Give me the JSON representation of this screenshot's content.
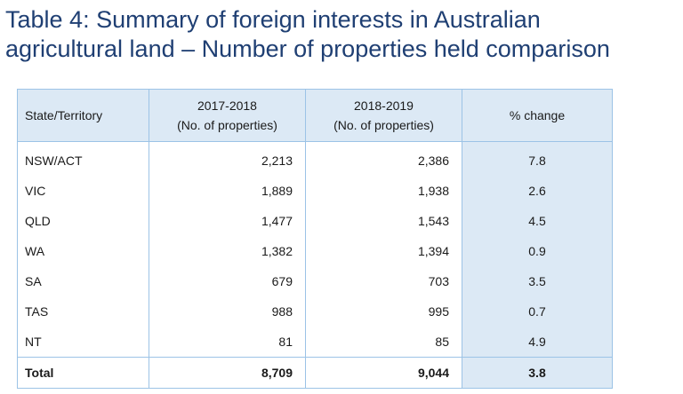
{
  "title": {
    "line1": "Table 4: Summary of foreign interests in Australian",
    "line2": "agricultural land – Number of properties held comparison"
  },
  "table": {
    "headers": {
      "state": "State/Territory",
      "year1_line1": "2017-2018",
      "year1_line2": "(No. of properties)",
      "year2_line1": "2018-2019",
      "year2_line2": "(No. of properties)",
      "change": "% change"
    },
    "rows": [
      {
        "state": "NSW/ACT",
        "y2017_2018": "2,213",
        "y2018_2019": "2,386",
        "change": "7.8"
      },
      {
        "state": "VIC",
        "y2017_2018": "1,889",
        "y2018_2019": "1,938",
        "change": "2.6"
      },
      {
        "state": "QLD",
        "y2017_2018": "1,477",
        "y2018_2019": "1,543",
        "change": "4.5"
      },
      {
        "state": "WA",
        "y2017_2018": "1,382",
        "y2018_2019": "1,394",
        "change": "0.9"
      },
      {
        "state": "SA",
        "y2017_2018": "679",
        "y2018_2019": "703",
        "change": "3.5"
      },
      {
        "state": "TAS",
        "y2017_2018": "988",
        "y2018_2019": "995",
        "change": "0.7"
      },
      {
        "state": "NT",
        "y2017_2018": "81",
        "y2018_2019": "85",
        "change": "4.9"
      }
    ],
    "total": {
      "state": "Total",
      "y2017_2018": "8,709",
      "y2018_2019": "9,044",
      "change": "3.8"
    }
  },
  "colors": {
    "title": "#1f3f73",
    "header_fill": "#dce9f5",
    "border": "#9cc3e6"
  }
}
